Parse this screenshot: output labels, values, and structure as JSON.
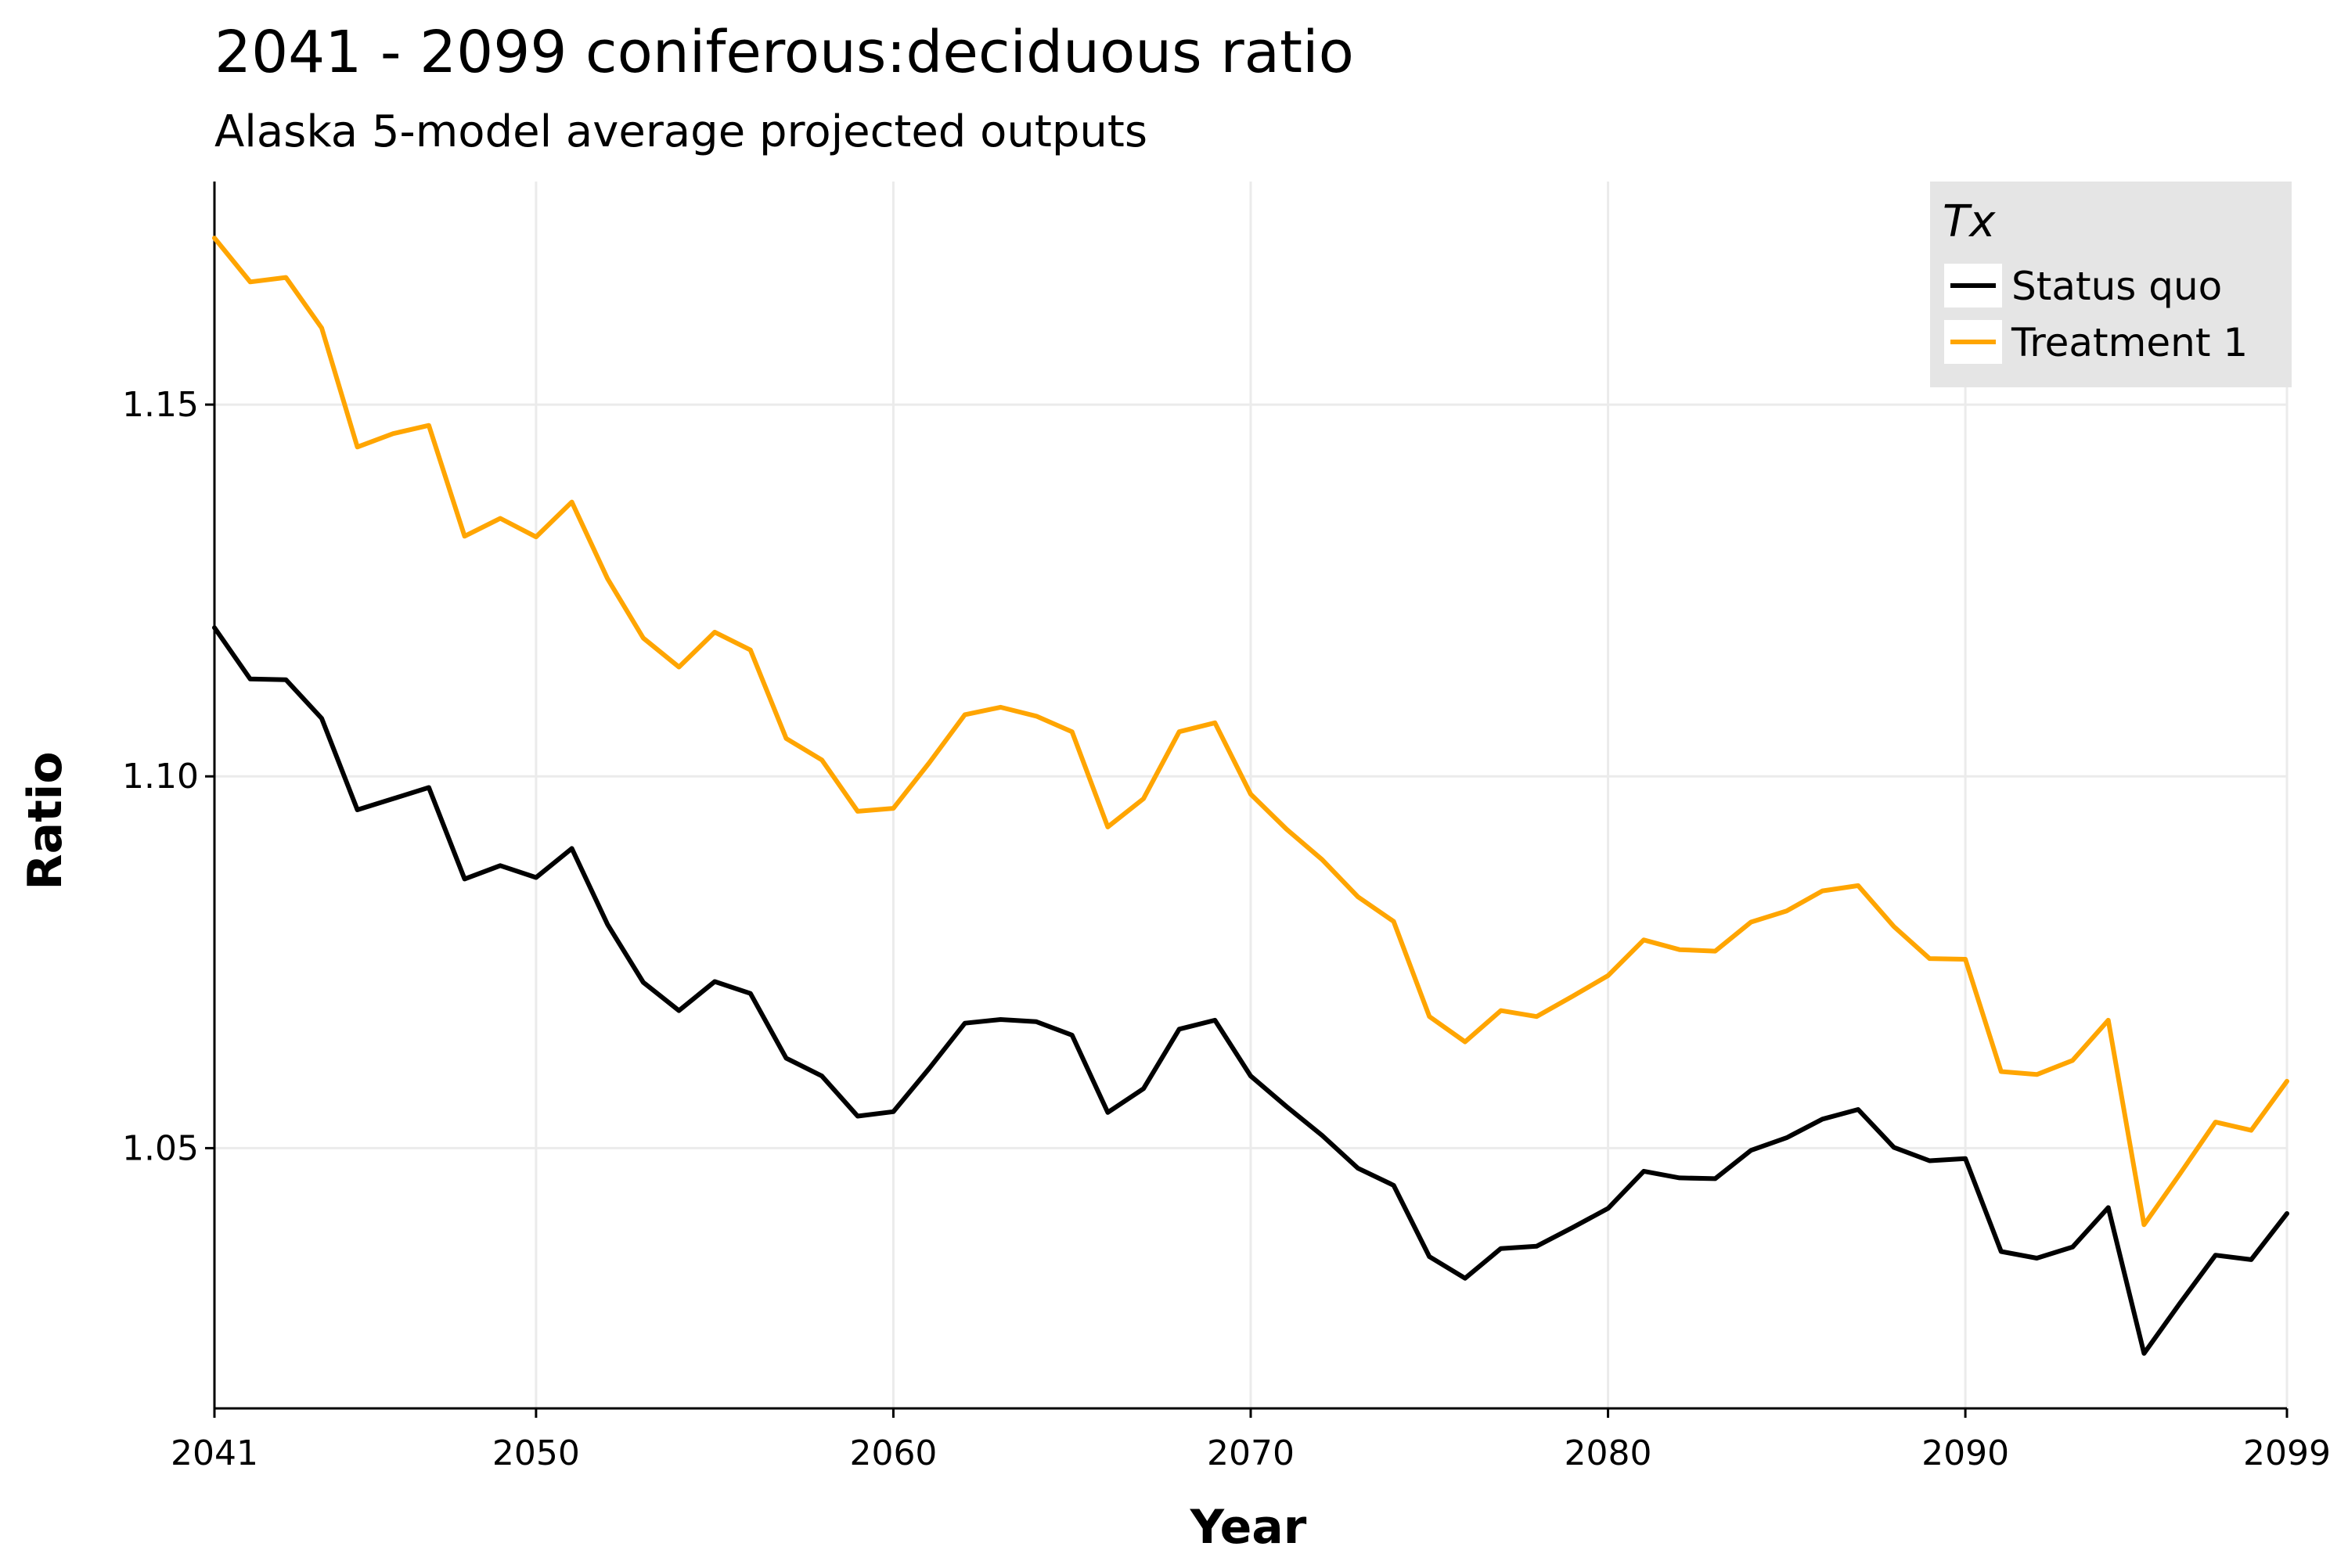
{
  "chart_data": {
    "type": "line",
    "title": "2041 - 2099 coniferous:deciduous ratio",
    "subtitle": "Alaska 5-model average projected outputs",
    "xlabel": "Year",
    "ylabel": "Ratio",
    "xlim": [
      2041,
      2099
    ],
    "ylim": [
      1.015,
      1.18
    ],
    "x_ticks": [
      2041,
      2050,
      2060,
      2070,
      2080,
      2090,
      2099
    ],
    "x_tick_labels": [
      "2041",
      "2050",
      "2060",
      "2070",
      "2080",
      "2090",
      "2099"
    ],
    "y_ticks": [
      1.05,
      1.1,
      1.15
    ],
    "y_tick_labels": [
      "1.05",
      "1.10",
      "1.15"
    ],
    "grid": true,
    "legend": {
      "title": "Tx",
      "placement": "top-right",
      "entries": [
        "Status quo",
        "Treatment 1"
      ]
    },
    "x": [
      2041,
      2042,
      2043,
      2044,
      2045,
      2046,
      2047,
      2048,
      2049,
      2050,
      2051,
      2052,
      2053,
      2054,
      2055,
      2056,
      2057,
      2058,
      2059,
      2060,
      2061,
      2062,
      2063,
      2064,
      2065,
      2066,
      2067,
      2068,
      2069,
      2070,
      2071,
      2072,
      2073,
      2074,
      2075,
      2076,
      2077,
      2078,
      2079,
      2080,
      2081,
      2082,
      2083,
      2084,
      2085,
      2086,
      2087,
      2088,
      2089,
      2090,
      2091,
      2092,
      2093,
      2094,
      2095,
      2096,
      2097,
      2098,
      2099
    ],
    "series": [
      {
        "name": "Status quo",
        "color": "#000000",
        "values": [
          1.12,
          1.1131,
          1.113,
          1.1078,
          1.0955,
          1.097,
          1.0985,
          1.0862,
          1.088,
          1.0864,
          1.0903,
          1.0801,
          1.0723,
          1.0685,
          1.0724,
          1.0708,
          1.0621,
          1.0597,
          1.0543,
          1.0549,
          1.0607,
          1.0668,
          1.0673,
          1.067,
          1.0652,
          1.0548,
          1.058,
          1.066,
          1.0672,
          1.0597,
          1.0556,
          1.0517,
          1.0473,
          1.045,
          1.0354,
          1.0325,
          1.0365,
          1.0368,
          1.0393,
          1.0419,
          1.0469,
          1.046,
          1.0459,
          1.0497,
          1.0514,
          1.0539,
          1.0552,
          1.0501,
          1.0483,
          1.0486,
          1.0361,
          1.0352,
          1.0367,
          1.042,
          1.0224,
          1.0291,
          1.0356,
          1.035,
          1.0412
        ]
      },
      {
        "name": "Treatment 1",
        "color": "#FFA500",
        "values": [
          1.1724,
          1.1665,
          1.1671,
          1.1603,
          1.1443,
          1.1461,
          1.1472,
          1.1323,
          1.1347,
          1.1322,
          1.1369,
          1.1266,
          1.1186,
          1.1147,
          1.1194,
          1.117,
          1.1051,
          1.1022,
          1.0953,
          1.0957,
          1.1018,
          1.1083,
          1.1093,
          1.1081,
          1.106,
          1.0932,
          1.097,
          1.106,
          1.1072,
          1.0976,
          1.0929,
          1.0888,
          1.0838,
          1.0805,
          1.0677,
          1.0643,
          1.0685,
          1.0677,
          1.0704,
          1.0732,
          1.078,
          1.0767,
          1.0765,
          1.0804,
          1.0819,
          1.0846,
          1.0853,
          1.0798,
          1.0755,
          1.0754,
          1.0603,
          1.0599,
          1.0618,
          1.0672,
          1.0397,
          1.0465,
          1.0535,
          1.0524,
          1.059
        ]
      }
    ]
  }
}
